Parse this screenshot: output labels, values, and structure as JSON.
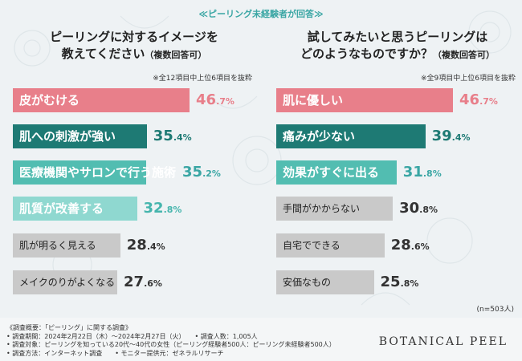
{
  "banner": "≪ピーリング未経験者が回答≫",
  "chart_data": [
    {
      "type": "bar",
      "title_line1": "ピーリングに対するイメージを",
      "title_line2": "教えてください",
      "title_sub": "（複数回答可）",
      "note": "※全12項目中上位6項目を抜粋",
      "categories": [
        "皮がむける",
        "肌への刺激が強い",
        "医療機関やサロンで行う施術",
        "肌質が改善する",
        "肌が明るく見える",
        "メイクのりがよくなる"
      ],
      "values": [
        46.7,
        35.4,
        35.2,
        32.8,
        28.4,
        27.6
      ],
      "value_labels_int": [
        "46",
        "35",
        "35",
        "32",
        "28",
        "27"
      ],
      "value_labels_dec": [
        ".7%",
        ".4%",
        ".2%",
        ".8%",
        ".4%",
        ".6%"
      ],
      "colors": [
        "#e87f8a",
        "#1e7a74",
        "#52bdb1",
        "#8fd8d0",
        "#c9c9c9",
        "#c9c9c9"
      ],
      "value_colors": [
        "#e87f8a",
        "#1e7a74",
        "#3aa6a4",
        "#45b5ad",
        "#333333",
        "#333333"
      ],
      "ylim": [
        0,
        50
      ]
    },
    {
      "type": "bar",
      "title_line1": "試してみたいと思うピーリングは",
      "title_line2": "どのようなものですか？",
      "title_sub": "（複数回答可）",
      "note": "※全9項目中上位6項目を抜粋",
      "categories": [
        "肌に優しい",
        "痛みが少ない",
        "効果がすぐに出る",
        "手間がかからない",
        "自宅でできる",
        "安価なもの"
      ],
      "values": [
        46.7,
        39.4,
        31.8,
        30.8,
        28.6,
        25.8
      ],
      "value_labels_int": [
        "46",
        "39",
        "31",
        "30",
        "28",
        "25"
      ],
      "value_labels_dec": [
        ".7%",
        ".4%",
        ".8%",
        ".8%",
        ".6%",
        ".8%"
      ],
      "colors": [
        "#e87f8a",
        "#1e7a74",
        "#52bdb1",
        "#c9c9c9",
        "#c9c9c9",
        "#c9c9c9"
      ],
      "value_colors": [
        "#e87f8a",
        "#1e7a74",
        "#3aa6a4",
        "#333333",
        "#333333",
        "#333333"
      ],
      "ylim": [
        0,
        50
      ]
    }
  ],
  "n_note": "(n=503人)",
  "footer": {
    "line1": "《調査概要：「ピーリング」に関する調査》",
    "line2": "• 調査期間：2024年2月22日（木）～2024年2月27日（火）　　• 調査人数：1,005人",
    "line3": "• 調査対象：ピーリングを知っている20代～40代の女性（ピーリング経験者500人：ピーリング未経験者500人）",
    "line4": "• 調査方法：インターネット調査　　• モニター提供元：ゼネラルリサーチ"
  },
  "brand": "BOTANICAL PEEL"
}
